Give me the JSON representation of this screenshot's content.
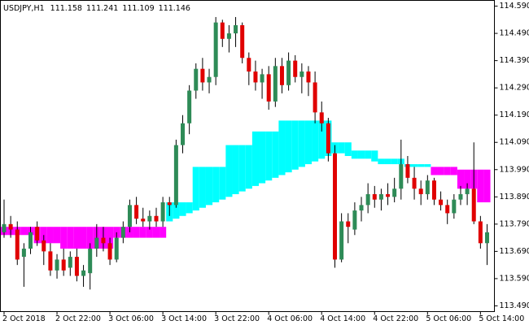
{
  "chart_data": {
    "type": "candlestick",
    "symbol": "USDJPY,H1",
    "last_ohlc": [
      111.158,
      111.241,
      111.109,
      111.146
    ],
    "categories": [
      "2 Oct 2018",
      null,
      null,
      null,
      null,
      null,
      null,
      null,
      "2 Oct 22:00",
      null,
      null,
      null,
      null,
      null,
      null,
      null,
      "3 Oct 06:00",
      null,
      null,
      null,
      null,
      null,
      null,
      null,
      "3 Oct 14:00",
      null,
      null,
      null,
      null,
      null,
      null,
      null,
      "3 Oct 22:00",
      null,
      null,
      null,
      null,
      null,
      null,
      null,
      "4 Oct 06:00",
      null,
      null,
      null,
      null,
      null,
      null,
      null,
      "4 Oct 14:00",
      null,
      null,
      null,
      null,
      null,
      null,
      null,
      "4 Oct 22:00",
      null,
      null,
      null,
      null,
      null,
      null,
      null,
      "5 Oct 06:00",
      null,
      null,
      null,
      null,
      null,
      null,
      null,
      "5 Oct 14:00",
      null
    ],
    "open": [
      113.76,
      113.79,
      113.77,
      113.67,
      113.7,
      113.78,
      113.73,
      113.69,
      113.62,
      113.66,
      113.63,
      113.67,
      113.6,
      113.61,
      113.7,
      113.74,
      113.72,
      113.66,
      113.74,
      113.78,
      113.86,
      113.81,
      113.8,
      113.82,
      113.8,
      113.87,
      113.86,
      114.08,
      114.16,
      114.28,
      114.36,
      114.31,
      114.33,
      114.53,
      114.47,
      114.49,
      114.52,
      114.4,
      114.35,
      114.31,
      114.34,
      114.24,
      114.37,
      114.3,
      114.39,
      114.33,
      114.35,
      114.31,
      114.2,
      114.16,
      114.05,
      113.66,
      113.8,
      113.77,
      113.84,
      113.86,
      113.9,
      113.88,
      113.9,
      113.89,
      113.92,
      114.01,
      113.96,
      113.92,
      113.9,
      113.95,
      113.88,
      113.86,
      113.83,
      113.88,
      113.9,
      113.92,
      113.8,
      113.72
    ],
    "high": [
      113.88,
      113.82,
      113.8,
      113.72,
      113.78,
      113.8,
      113.75,
      113.72,
      113.68,
      113.7,
      113.69,
      113.7,
      113.64,
      113.72,
      113.79,
      113.78,
      113.74,
      113.76,
      113.8,
      113.88,
      113.89,
      113.85,
      113.84,
      113.85,
      113.89,
      113.89,
      114.1,
      114.19,
      114.3,
      114.38,
      114.4,
      114.36,
      114.55,
      114.54,
      114.52,
      114.55,
      114.53,
      114.42,
      114.39,
      114.36,
      114.37,
      114.4,
      114.4,
      114.42,
      114.41,
      114.38,
      114.37,
      114.35,
      114.24,
      114.18,
      114.08,
      113.83,
      113.83,
      113.87,
      113.89,
      113.94,
      113.93,
      113.92,
      113.94,
      113.96,
      114.1,
      114.04,
      114.0,
      113.95,
      113.97,
      113.96,
      113.91,
      113.88,
      113.9,
      113.93,
      113.94,
      114.09,
      113.82,
      113.79
    ],
    "low": [
      113.74,
      113.74,
      113.64,
      113.56,
      113.68,
      113.71,
      113.64,
      113.6,
      113.59,
      113.6,
      113.6,
      113.58,
      113.56,
      113.55,
      113.67,
      113.69,
      113.64,
      113.65,
      113.72,
      113.76,
      113.79,
      113.78,
      113.77,
      113.78,
      113.78,
      113.82,
      113.85,
      114.05,
      114.12,
      114.25,
      114.28,
      114.27,
      114.3,
      114.44,
      114.42,
      114.44,
      114.38,
      114.3,
      114.28,
      114.25,
      114.21,
      114.22,
      114.27,
      114.28,
      114.31,
      114.27,
      114.26,
      114.16,
      114.13,
      114.02,
      113.63,
      113.65,
      113.72,
      113.75,
      113.8,
      113.83,
      113.85,
      113.84,
      113.86,
      113.87,
      113.88,
      113.94,
      113.88,
      113.86,
      113.88,
      113.86,
      113.84,
      113.79,
      113.81,
      113.86,
      113.86,
      113.79,
      113.7,
      113.64
    ],
    "close": [
      113.79,
      113.77,
      113.66,
      113.7,
      113.76,
      113.73,
      113.69,
      113.62,
      113.66,
      113.62,
      113.67,
      113.6,
      113.62,
      113.7,
      113.74,
      113.72,
      113.66,
      113.74,
      113.78,
      113.86,
      113.81,
      113.8,
      113.82,
      113.8,
      113.87,
      113.86,
      114.08,
      114.16,
      114.28,
      114.36,
      114.31,
      114.33,
      114.53,
      114.47,
      114.49,
      114.52,
      114.4,
      114.35,
      114.31,
      114.34,
      114.24,
      114.37,
      114.3,
      114.39,
      114.33,
      114.35,
      114.31,
      114.2,
      114.16,
      114.05,
      113.66,
      113.8,
      113.78,
      113.84,
      113.86,
      113.9,
      113.88,
      113.9,
      113.89,
      113.92,
      114.01,
      113.96,
      113.92,
      113.9,
      113.95,
      113.88,
      113.86,
      113.83,
      113.88,
      113.9,
      113.92,
      113.8,
      113.72,
      113.76
    ],
    "up_color": "#2e8b57",
    "down_color": "#e00000",
    "bands": {
      "top": [
        113.78,
        113.78,
        113.78,
        113.78,
        113.78,
        113.78,
        113.78,
        113.78,
        113.78,
        113.78,
        113.78,
        113.78,
        113.78,
        113.78,
        113.78,
        113.78,
        113.78,
        113.78,
        113.78,
        113.78,
        113.78,
        113.78,
        113.78,
        113.78,
        113.78,
        113.87,
        113.87,
        113.87,
        113.87,
        114.0,
        114.0,
        114.0,
        114.0,
        114.0,
        114.08,
        114.08,
        114.08,
        114.08,
        114.13,
        114.13,
        114.13,
        114.13,
        114.17,
        114.17,
        114.17,
        114.17,
        114.17,
        114.17,
        114.17,
        114.17,
        114.09,
        114.09,
        114.09,
        114.06,
        114.06,
        114.06,
        114.06,
        114.03,
        114.03,
        114.03,
        114.03,
        114.01,
        114.01,
        114.01,
        114.01,
        114.0,
        114.0,
        114.0,
        114.0,
        113.99,
        113.99,
        113.99,
        113.99,
        113.99
      ],
      "bottom": [
        113.75,
        113.75,
        113.75,
        113.75,
        113.75,
        113.72,
        113.72,
        113.72,
        113.72,
        113.7,
        113.7,
        113.7,
        113.7,
        113.7,
        113.7,
        113.7,
        113.7,
        113.74,
        113.74,
        113.74,
        113.74,
        113.74,
        113.74,
        113.74,
        113.74,
        113.8,
        113.81,
        113.82,
        113.83,
        113.84,
        113.85,
        113.86,
        113.87,
        113.88,
        113.89,
        113.9,
        113.91,
        113.92,
        113.93,
        113.94,
        113.95,
        113.96,
        113.97,
        113.98,
        113.99,
        114.0,
        114.01,
        114.02,
        114.03,
        114.04,
        114.05,
        114.05,
        114.04,
        114.03,
        114.03,
        114.03,
        114.02,
        114.01,
        114.01,
        114.01,
        114.01,
        114.0,
        114.0,
        114.0,
        114.0,
        113.97,
        113.97,
        113.97,
        113.97,
        113.92,
        113.92,
        113.92,
        113.87,
        113.87
      ],
      "segments": [
        {
          "start": 0,
          "end": 24,
          "color": "#ff00ff"
        },
        {
          "start": 25,
          "end": 64,
          "color": "#00ffff"
        },
        {
          "start": 65,
          "end": 73,
          "color": "#ff00ff"
        }
      ]
    },
    "ylim": [
      113.469,
      114.611
    ],
    "yticks": [
      {
        "value": 114.59,
        "label": "114.590"
      },
      {
        "value": 114.49,
        "label": "114.490"
      },
      {
        "value": 114.39,
        "label": "114.390"
      },
      {
        "value": 114.29,
        "label": "114.290"
      },
      {
        "value": 114.19,
        "label": "114.190"
      },
      {
        "value": 114.09,
        "label": "114.090"
      },
      {
        "value": 113.99,
        "label": "113.990"
      },
      {
        "value": 113.89,
        "label": "113.890"
      },
      {
        "value": 113.79,
        "label": "113.790"
      },
      {
        "value": 113.69,
        "label": "113.690"
      },
      {
        "value": 113.59,
        "label": "113.590"
      },
      {
        "value": 113.49,
        "label": "113.490"
      }
    ]
  }
}
